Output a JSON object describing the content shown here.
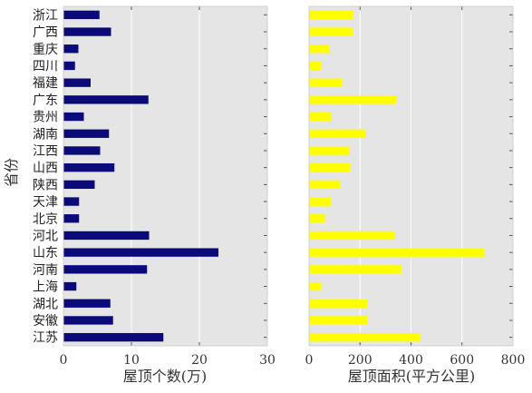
{
  "chart_data": [
    {
      "type": "bar",
      "orientation": "horizontal",
      "ylabel": "省份",
      "xlabel": "屋顶个数(万)",
      "xlim": [
        0,
        30
      ],
      "xticks": [
        "0",
        "10",
        "20",
        "30"
      ],
      "grid": true,
      "bar_color": "#0a0a7a",
      "categories": [
        "浙江",
        "广西",
        "重庆",
        "四川",
        "福建",
        "广东",
        "贵州",
        "湖南",
        "江西",
        "山西",
        "陕西",
        "天津",
        "北京",
        "河北",
        "山东",
        "河南",
        "上海",
        "湖北",
        "安徽",
        "江苏"
      ],
      "values": [
        5.3,
        7.0,
        2.2,
        1.7,
        4.0,
        12.5,
        3.0,
        6.7,
        5.4,
        7.5,
        4.6,
        2.3,
        2.3,
        12.6,
        22.8,
        12.3,
        1.9,
        6.9,
        7.3,
        14.7
      ]
    },
    {
      "type": "bar",
      "orientation": "horizontal",
      "xlabel": "屋顶面积(平方公里)",
      "xlim": [
        0,
        800
      ],
      "xticks": [
        "0",
        "200",
        "400",
        "600",
        "800"
      ],
      "grid": true,
      "bar_color": "#ffff00",
      "categories": [
        "浙江",
        "广西",
        "重庆",
        "四川",
        "福建",
        "广东",
        "贵州",
        "湖南",
        "江西",
        "山西",
        "陕西",
        "天津",
        "北京",
        "河北",
        "山东",
        "河南",
        "上海",
        "湖北",
        "安徽",
        "江苏"
      ],
      "values": [
        175,
        172,
        78,
        48,
        130,
        345,
        85,
        222,
        158,
        162,
        122,
        85,
        62,
        338,
        688,
        362,
        48,
        228,
        228,
        438
      ]
    }
  ]
}
